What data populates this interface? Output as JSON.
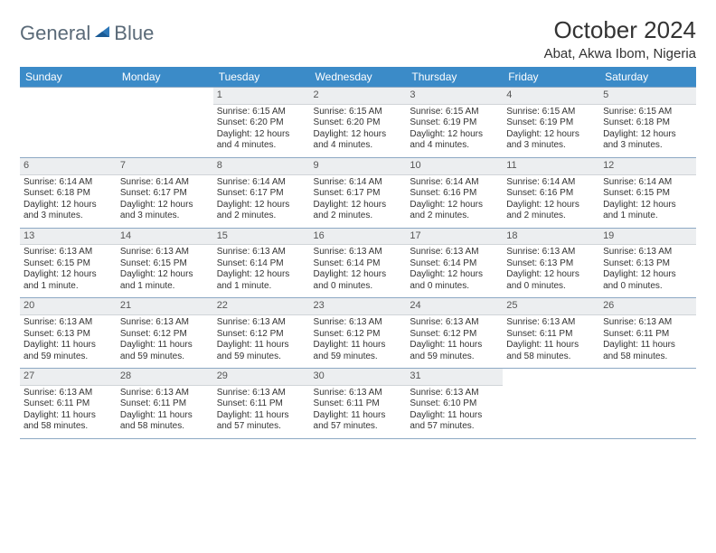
{
  "logo": {
    "word1": "General",
    "word2": "Blue"
  },
  "title": "October 2024",
  "location": "Abat, Akwa Ibom, Nigeria",
  "colors": {
    "header_bg": "#3b8bc8",
    "header_text": "#ffffff",
    "daynum_bg": "#eceef0",
    "border": "#8da9c4",
    "text": "#333333",
    "logo_gray": "#5a6a78",
    "logo_blue": "#2d77b8"
  },
  "weekdays": [
    "Sunday",
    "Monday",
    "Tuesday",
    "Wednesday",
    "Thursday",
    "Friday",
    "Saturday"
  ],
  "first_weekday_index": 2,
  "days": [
    {
      "n": 1,
      "sunrise": "Sunrise: 6:15 AM",
      "sunset": "Sunset: 6:20 PM",
      "daylight": "Daylight: 12 hours and 4 minutes."
    },
    {
      "n": 2,
      "sunrise": "Sunrise: 6:15 AM",
      "sunset": "Sunset: 6:20 PM",
      "daylight": "Daylight: 12 hours and 4 minutes."
    },
    {
      "n": 3,
      "sunrise": "Sunrise: 6:15 AM",
      "sunset": "Sunset: 6:19 PM",
      "daylight": "Daylight: 12 hours and 4 minutes."
    },
    {
      "n": 4,
      "sunrise": "Sunrise: 6:15 AM",
      "sunset": "Sunset: 6:19 PM",
      "daylight": "Daylight: 12 hours and 3 minutes."
    },
    {
      "n": 5,
      "sunrise": "Sunrise: 6:15 AM",
      "sunset": "Sunset: 6:18 PM",
      "daylight": "Daylight: 12 hours and 3 minutes."
    },
    {
      "n": 6,
      "sunrise": "Sunrise: 6:14 AM",
      "sunset": "Sunset: 6:18 PM",
      "daylight": "Daylight: 12 hours and 3 minutes."
    },
    {
      "n": 7,
      "sunrise": "Sunrise: 6:14 AM",
      "sunset": "Sunset: 6:17 PM",
      "daylight": "Daylight: 12 hours and 3 minutes."
    },
    {
      "n": 8,
      "sunrise": "Sunrise: 6:14 AM",
      "sunset": "Sunset: 6:17 PM",
      "daylight": "Daylight: 12 hours and 2 minutes."
    },
    {
      "n": 9,
      "sunrise": "Sunrise: 6:14 AM",
      "sunset": "Sunset: 6:17 PM",
      "daylight": "Daylight: 12 hours and 2 minutes."
    },
    {
      "n": 10,
      "sunrise": "Sunrise: 6:14 AM",
      "sunset": "Sunset: 6:16 PM",
      "daylight": "Daylight: 12 hours and 2 minutes."
    },
    {
      "n": 11,
      "sunrise": "Sunrise: 6:14 AM",
      "sunset": "Sunset: 6:16 PM",
      "daylight": "Daylight: 12 hours and 2 minutes."
    },
    {
      "n": 12,
      "sunrise": "Sunrise: 6:14 AM",
      "sunset": "Sunset: 6:15 PM",
      "daylight": "Daylight: 12 hours and 1 minute."
    },
    {
      "n": 13,
      "sunrise": "Sunrise: 6:13 AM",
      "sunset": "Sunset: 6:15 PM",
      "daylight": "Daylight: 12 hours and 1 minute."
    },
    {
      "n": 14,
      "sunrise": "Sunrise: 6:13 AM",
      "sunset": "Sunset: 6:15 PM",
      "daylight": "Daylight: 12 hours and 1 minute."
    },
    {
      "n": 15,
      "sunrise": "Sunrise: 6:13 AM",
      "sunset": "Sunset: 6:14 PM",
      "daylight": "Daylight: 12 hours and 1 minute."
    },
    {
      "n": 16,
      "sunrise": "Sunrise: 6:13 AM",
      "sunset": "Sunset: 6:14 PM",
      "daylight": "Daylight: 12 hours and 0 minutes."
    },
    {
      "n": 17,
      "sunrise": "Sunrise: 6:13 AM",
      "sunset": "Sunset: 6:14 PM",
      "daylight": "Daylight: 12 hours and 0 minutes."
    },
    {
      "n": 18,
      "sunrise": "Sunrise: 6:13 AM",
      "sunset": "Sunset: 6:13 PM",
      "daylight": "Daylight: 12 hours and 0 minutes."
    },
    {
      "n": 19,
      "sunrise": "Sunrise: 6:13 AM",
      "sunset": "Sunset: 6:13 PM",
      "daylight": "Daylight: 12 hours and 0 minutes."
    },
    {
      "n": 20,
      "sunrise": "Sunrise: 6:13 AM",
      "sunset": "Sunset: 6:13 PM",
      "daylight": "Daylight: 11 hours and 59 minutes."
    },
    {
      "n": 21,
      "sunrise": "Sunrise: 6:13 AM",
      "sunset": "Sunset: 6:12 PM",
      "daylight": "Daylight: 11 hours and 59 minutes."
    },
    {
      "n": 22,
      "sunrise": "Sunrise: 6:13 AM",
      "sunset": "Sunset: 6:12 PM",
      "daylight": "Daylight: 11 hours and 59 minutes."
    },
    {
      "n": 23,
      "sunrise": "Sunrise: 6:13 AM",
      "sunset": "Sunset: 6:12 PM",
      "daylight": "Daylight: 11 hours and 59 minutes."
    },
    {
      "n": 24,
      "sunrise": "Sunrise: 6:13 AM",
      "sunset": "Sunset: 6:12 PM",
      "daylight": "Daylight: 11 hours and 59 minutes."
    },
    {
      "n": 25,
      "sunrise": "Sunrise: 6:13 AM",
      "sunset": "Sunset: 6:11 PM",
      "daylight": "Daylight: 11 hours and 58 minutes."
    },
    {
      "n": 26,
      "sunrise": "Sunrise: 6:13 AM",
      "sunset": "Sunset: 6:11 PM",
      "daylight": "Daylight: 11 hours and 58 minutes."
    },
    {
      "n": 27,
      "sunrise": "Sunrise: 6:13 AM",
      "sunset": "Sunset: 6:11 PM",
      "daylight": "Daylight: 11 hours and 58 minutes."
    },
    {
      "n": 28,
      "sunrise": "Sunrise: 6:13 AM",
      "sunset": "Sunset: 6:11 PM",
      "daylight": "Daylight: 11 hours and 58 minutes."
    },
    {
      "n": 29,
      "sunrise": "Sunrise: 6:13 AM",
      "sunset": "Sunset: 6:11 PM",
      "daylight": "Daylight: 11 hours and 57 minutes."
    },
    {
      "n": 30,
      "sunrise": "Sunrise: 6:13 AM",
      "sunset": "Sunset: 6:11 PM",
      "daylight": "Daylight: 11 hours and 57 minutes."
    },
    {
      "n": 31,
      "sunrise": "Sunrise: 6:13 AM",
      "sunset": "Sunset: 6:10 PM",
      "daylight": "Daylight: 11 hours and 57 minutes."
    }
  ]
}
